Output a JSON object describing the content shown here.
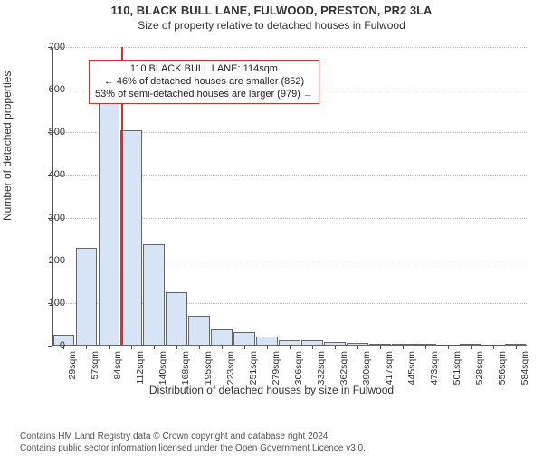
{
  "header": {
    "line1": "110, BLACK BULL LANE, FULWOOD, PRESTON, PR2 3LA",
    "line2": "Size of property relative to detached houses in Fulwood"
  },
  "axes": {
    "ylabel": "Number of detached properties",
    "xlabel": "Distribution of detached houses by size in Fulwood",
    "ylim": [
      0,
      700
    ],
    "ytick_step": 100,
    "yticks": [
      0,
      100,
      200,
      300,
      400,
      500,
      600,
      700
    ]
  },
  "chart": {
    "type": "histogram",
    "background_color": "#ffffff",
    "grid_color": "#bbbbbb",
    "axis_color": "#555555",
    "bar_fill": "#d6e4f5",
    "bar_border": "#666666",
    "bar_width_ratio": 0.95,
    "marker_color": "#cc3333",
    "marker_position_sqm": 114,
    "annot_border": "#cc3333",
    "annot": {
      "line1": "110 BLACK BULL LANE: 114sqm",
      "line2": "← 46% of detached houses are smaller (852)",
      "line3": "53% of semi-detached houses are larger (979) →"
    },
    "categories": [
      "29sqm",
      "57sqm",
      "84sqm",
      "112sqm",
      "140sqm",
      "168sqm",
      "195sqm",
      "223sqm",
      "251sqm",
      "279sqm",
      "306sqm",
      "332sqm",
      "362sqm",
      "390sqm",
      "417sqm",
      "445sqm",
      "473sqm",
      "501sqm",
      "528sqm",
      "556sqm",
      "584sqm"
    ],
    "values": [
      25,
      230,
      575,
      505,
      238,
      125,
      70,
      38,
      32,
      22,
      13,
      12,
      8,
      7,
      5,
      4,
      3,
      0,
      2,
      0,
      2
    ]
  },
  "footer": {
    "line1": "Contains HM Land Registry data © Crown copyright and database right 2024.",
    "line2": "Contains public sector information licensed under the Open Government Licence v3.0."
  }
}
